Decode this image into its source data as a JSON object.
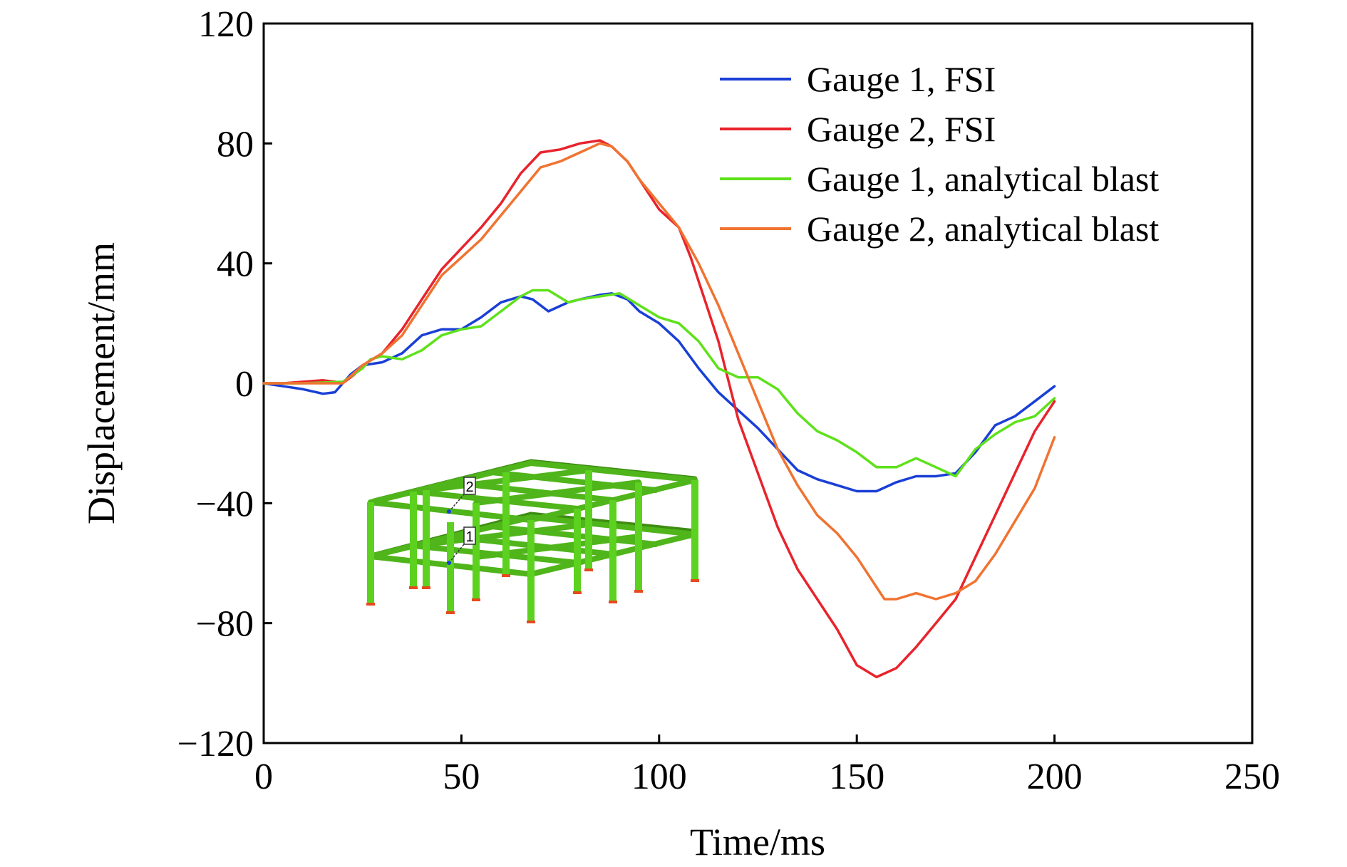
{
  "chart_data": {
    "type": "line",
    "title": "",
    "xlabel": "Time/ms",
    "ylabel": "Displacement/mm",
    "xlim": [
      0,
      250
    ],
    "ylim": [
      -120,
      120
    ],
    "xticks": [
      0,
      50,
      100,
      150,
      200,
      250
    ],
    "xtick_labels": [
      "0",
      "50",
      "100",
      "150",
      "200",
      "250"
    ],
    "yticks": [
      -120,
      -80,
      -40,
      0,
      40,
      80,
      120
    ],
    "ytick_labels": [
      "−120",
      "−80",
      "−40",
      "0",
      "40",
      "80",
      "120"
    ],
    "grid": false,
    "legend_position": "top-right",
    "series": [
      {
        "name": "Gauge 1, FSI",
        "color": "#1a3fd6",
        "x": [
          0,
          5,
          10,
          15,
          18,
          20,
          22,
          25,
          30,
          35,
          40,
          45,
          50,
          55,
          60,
          65,
          68,
          72,
          77,
          80,
          85,
          88,
          92,
          95,
          100,
          105,
          110,
          115,
          120,
          125,
          130,
          135,
          140,
          145,
          150,
          155,
          160,
          165,
          170,
          175,
          180,
          185,
          190,
          195,
          200
        ],
        "y": [
          0,
          -1,
          -2,
          -3.5,
          -3,
          0,
          3,
          6,
          7,
          10,
          16,
          18,
          18,
          22,
          27,
          29,
          28,
          24,
          27,
          28,
          29.5,
          30,
          28,
          24,
          20,
          14,
          5,
          -3,
          -9,
          -15,
          -22,
          -29,
          -32,
          -34,
          -36,
          -36,
          -33,
          -31,
          -31,
          -30,
          -23,
          -14,
          -11,
          -6,
          -1
        ]
      },
      {
        "name": "Gauge 2, FSI",
        "color": "#e8232c",
        "x": [
          0,
          5,
          10,
          15,
          18,
          20,
          23,
          25,
          30,
          35,
          40,
          45,
          50,
          55,
          60,
          65,
          70,
          75,
          80,
          85,
          88,
          92,
          95,
          100,
          105,
          108,
          112,
          115,
          120,
          125,
          130,
          135,
          140,
          145,
          150,
          155,
          160,
          165,
          170,
          175,
          180,
          185,
          190,
          195,
          200
        ],
        "y": [
          0,
          0,
          0.5,
          1,
          0.5,
          0,
          3,
          6,
          10,
          18,
          28,
          38,
          45,
          52,
          60,
          70,
          77,
          78,
          80,
          81,
          79,
          74,
          68,
          58,
          52,
          42,
          26,
          14,
          -12,
          -30,
          -48,
          -62,
          -72,
          -82,
          -94,
          -98,
          -95,
          -88,
          -80,
          -72,
          -58,
          -44,
          -30,
          -16,
          -6
        ]
      },
      {
        "name": "Gauge 1, analytical blast",
        "color": "#5ee11b",
        "x": [
          0,
          10,
          20,
          25,
          27,
          30,
          35,
          40,
          45,
          50,
          55,
          60,
          65,
          68,
          72,
          77,
          80,
          85,
          90,
          95,
          100,
          105,
          110,
          115,
          120,
          125,
          130,
          135,
          140,
          145,
          150,
          155,
          160,
          165,
          170,
          175,
          180,
          185,
          190,
          195,
          200
        ],
        "y": [
          0,
          0,
          0.5,
          5,
          8,
          9,
          8,
          11,
          16,
          18,
          19,
          24,
          29,
          31,
          31,
          27,
          28,
          29,
          30,
          26,
          22,
          20,
          14,
          5,
          2,
          2,
          -2,
          -10,
          -16,
          -19,
          -23,
          -28,
          -28,
          -25,
          -28,
          -31,
          -22,
          -17,
          -13,
          -11,
          -5
        ]
      },
      {
        "name": "Gauge 2, analytical blast",
        "color": "#f07331",
        "x": [
          0,
          10,
          20,
          25,
          30,
          35,
          40,
          45,
          50,
          55,
          60,
          65,
          70,
          75,
          80,
          85,
          88,
          92,
          95,
          100,
          105,
          110,
          115,
          120,
          125,
          130,
          135,
          140,
          145,
          150,
          155,
          157,
          160,
          165,
          170,
          175,
          180,
          185,
          190,
          195,
          200
        ],
        "y": [
          0,
          0,
          0,
          6,
          10,
          16,
          26,
          36,
          42,
          48,
          56,
          64,
          72,
          74,
          77,
          80,
          79,
          74,
          68,
          60,
          52,
          40,
          26,
          10,
          -6,
          -22,
          -34,
          -44,
          -50,
          -58,
          -68,
          -72,
          -72,
          -70,
          -72,
          -70,
          -66,
          -57,
          -46,
          -35,
          -18
        ]
      }
    ],
    "inset": {
      "description_free": true,
      "labels": [
        "1",
        "2"
      ]
    }
  }
}
